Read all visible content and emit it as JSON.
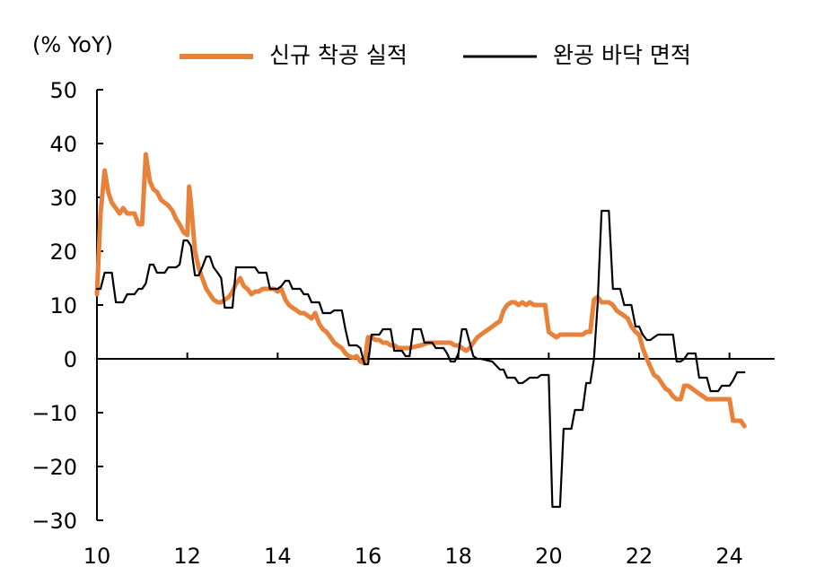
{
  "chart_data": {
    "type": "line",
    "unit_label": "(% YoY)",
    "xlim": [
      2010,
      2025
    ],
    "ylim": [
      -30,
      50
    ],
    "y_ticks": [
      50,
      40,
      30,
      20,
      10,
      0,
      -10,
      -20,
      -30
    ],
    "x_ticks": [
      10,
      12,
      14,
      16,
      18,
      20,
      22,
      24
    ],
    "grid": false,
    "legend_position": "top",
    "colors": {
      "orange": "#E8823A",
      "black": "#000000"
    },
    "series": [
      {
        "name": "신규 착공 실적",
        "color": "#E8823A",
        "points": [
          [
            2010.0,
            12
          ],
          [
            2010.08,
            27
          ],
          [
            2010.17,
            35
          ],
          [
            2010.25,
            31
          ],
          [
            2010.33,
            29
          ],
          [
            2010.42,
            28
          ],
          [
            2010.5,
            27
          ],
          [
            2010.58,
            28
          ],
          [
            2010.67,
            27
          ],
          [
            2010.75,
            27
          ],
          [
            2010.83,
            27
          ],
          [
            2010.92,
            25
          ],
          [
            2011.0,
            25
          ],
          [
            2011.08,
            38
          ],
          [
            2011.17,
            33
          ],
          [
            2011.25,
            31.5
          ],
          [
            2011.33,
            31
          ],
          [
            2011.42,
            29.5
          ],
          [
            2011.5,
            29
          ],
          [
            2011.58,
            28.5
          ],
          [
            2011.67,
            27.5
          ],
          [
            2011.75,
            26
          ],
          [
            2011.83,
            25
          ],
          [
            2011.92,
            23.5
          ],
          [
            2012.0,
            23
          ],
          [
            2012.04,
            32
          ],
          [
            2012.08,
            29
          ],
          [
            2012.17,
            20
          ],
          [
            2012.25,
            17
          ],
          [
            2012.33,
            15
          ],
          [
            2012.42,
            13
          ],
          [
            2012.5,
            12
          ],
          [
            2012.58,
            11
          ],
          [
            2012.67,
            10.5
          ],
          [
            2012.75,
            10.5
          ],
          [
            2012.83,
            11
          ],
          [
            2012.92,
            11.5
          ],
          [
            2013.0,
            12.5
          ],
          [
            2013.08,
            14
          ],
          [
            2013.17,
            15
          ],
          [
            2013.25,
            13.5
          ],
          [
            2013.33,
            13
          ],
          [
            2013.42,
            12
          ],
          [
            2013.5,
            12.5
          ],
          [
            2013.58,
            12.5
          ],
          [
            2013.67,
            13
          ],
          [
            2013.75,
            13
          ],
          [
            2013.83,
            13
          ],
          [
            2013.92,
            13
          ],
          [
            2014.0,
            12.5
          ],
          [
            2014.08,
            13
          ],
          [
            2014.17,
            11
          ],
          [
            2014.25,
            10
          ],
          [
            2014.33,
            9.5
          ],
          [
            2014.42,
            9
          ],
          [
            2014.5,
            8.5
          ],
          [
            2014.58,
            8.5
          ],
          [
            2014.67,
            8
          ],
          [
            2014.75,
            7.5
          ],
          [
            2014.83,
            8.5
          ],
          [
            2014.92,
            6.5
          ],
          [
            2015.0,
            5.5
          ],
          [
            2015.08,
            5
          ],
          [
            2015.17,
            4
          ],
          [
            2015.25,
            3
          ],
          [
            2015.33,
            2.5
          ],
          [
            2015.42,
            2
          ],
          [
            2015.5,
            1
          ],
          [
            2015.58,
            0.5
          ],
          [
            2015.67,
            0.2
          ],
          [
            2015.75,
            0.5
          ],
          [
            2015.83,
            -0.5
          ],
          [
            2015.92,
            -0.8
          ],
          [
            2016.0,
            4
          ],
          [
            2016.08,
            4
          ],
          [
            2016.17,
            3.5
          ],
          [
            2016.25,
            3.5
          ],
          [
            2016.33,
            3
          ],
          [
            2016.42,
            3
          ],
          [
            2016.5,
            2.5
          ],
          [
            2016.58,
            2.5
          ],
          [
            2016.67,
            2
          ],
          [
            2016.75,
            2
          ],
          [
            2016.83,
            2
          ],
          [
            2016.92,
            2
          ],
          [
            2017.0,
            2.2
          ],
          [
            2017.17,
            2.5
          ],
          [
            2017.33,
            3
          ],
          [
            2017.5,
            3
          ],
          [
            2017.67,
            3
          ],
          [
            2017.83,
            3
          ],
          [
            2017.92,
            2.5
          ],
          [
            2018.0,
            2.5
          ],
          [
            2018.08,
            2
          ],
          [
            2018.17,
            1.5
          ],
          [
            2018.25,
            2
          ],
          [
            2018.33,
            3
          ],
          [
            2018.42,
            4
          ],
          [
            2018.5,
            4.5
          ],
          [
            2018.58,
            5
          ],
          [
            2018.67,
            5.5
          ],
          [
            2018.75,
            6
          ],
          [
            2018.83,
            6.5
          ],
          [
            2018.92,
            7
          ],
          [
            2019.0,
            9
          ],
          [
            2019.08,
            10
          ],
          [
            2019.17,
            10.5
          ],
          [
            2019.25,
            10.5
          ],
          [
            2019.33,
            10
          ],
          [
            2019.42,
            10.5
          ],
          [
            2019.5,
            10
          ],
          [
            2019.58,
            10.5
          ],
          [
            2019.67,
            10
          ],
          [
            2019.75,
            10
          ],
          [
            2019.83,
            10
          ],
          [
            2019.92,
            10
          ],
          [
            2020.0,
            5
          ],
          [
            2020.08,
            4.5
          ],
          [
            2020.17,
            4
          ],
          [
            2020.25,
            4.5
          ],
          [
            2020.33,
            4.5
          ],
          [
            2020.42,
            4.5
          ],
          [
            2020.5,
            4.5
          ],
          [
            2020.58,
            4.5
          ],
          [
            2020.67,
            4.5
          ],
          [
            2020.75,
            4.5
          ],
          [
            2020.83,
            5
          ],
          [
            2020.92,
            5
          ],
          [
            2021.0,
            11
          ],
          [
            2021.08,
            11.5
          ],
          [
            2021.17,
            10.5
          ],
          [
            2021.25,
            10.5
          ],
          [
            2021.33,
            10.5
          ],
          [
            2021.42,
            10
          ],
          [
            2021.5,
            9
          ],
          [
            2021.58,
            8.5
          ],
          [
            2021.67,
            8
          ],
          [
            2021.75,
            7.5
          ],
          [
            2021.83,
            6
          ],
          [
            2021.92,
            5
          ],
          [
            2022.0,
            4.5
          ],
          [
            2022.08,
            2
          ],
          [
            2022.17,
            0
          ],
          [
            2022.25,
            -1.5
          ],
          [
            2022.33,
            -3
          ],
          [
            2022.42,
            -3.5
          ],
          [
            2022.5,
            -4.5
          ],
          [
            2022.58,
            -5.5
          ],
          [
            2022.67,
            -6
          ],
          [
            2022.75,
            -7
          ],
          [
            2022.83,
            -7.5
          ],
          [
            2022.92,
            -7.5
          ],
          [
            2023.0,
            -5
          ],
          [
            2023.08,
            -5
          ],
          [
            2023.17,
            -5.5
          ],
          [
            2023.25,
            -6
          ],
          [
            2023.33,
            -6.5
          ],
          [
            2023.42,
            -7
          ],
          [
            2023.5,
            -7.5
          ],
          [
            2023.58,
            -7.5
          ],
          [
            2023.67,
            -7.5
          ],
          [
            2023.75,
            -7.5
          ],
          [
            2023.83,
            -7.5
          ],
          [
            2023.92,
            -7.5
          ],
          [
            2024.0,
            -7.5
          ],
          [
            2024.08,
            -11.5
          ],
          [
            2024.17,
            -11.5
          ],
          [
            2024.25,
            -11.5
          ],
          [
            2024.33,
            -12.5
          ]
        ]
      },
      {
        "name": "완공 바닥 면적",
        "color": "#000000",
        "points": [
          [
            2010.0,
            13
          ],
          [
            2010.08,
            13
          ],
          [
            2010.17,
            16
          ],
          [
            2010.33,
            16
          ],
          [
            2010.42,
            10.5
          ],
          [
            2010.58,
            10.5
          ],
          [
            2010.67,
            12
          ],
          [
            2010.83,
            12
          ],
          [
            2010.92,
            13
          ],
          [
            2011.0,
            13
          ],
          [
            2011.08,
            14
          ],
          [
            2011.17,
            17.5
          ],
          [
            2011.25,
            17.5
          ],
          [
            2011.33,
            16
          ],
          [
            2011.5,
            16
          ],
          [
            2011.58,
            17
          ],
          [
            2011.75,
            17
          ],
          [
            2011.83,
            17.5
          ],
          [
            2011.92,
            22
          ],
          [
            2012.0,
            22
          ],
          [
            2012.08,
            21
          ],
          [
            2012.17,
            15.5
          ],
          [
            2012.25,
            15.5
          ],
          [
            2012.33,
            17
          ],
          [
            2012.42,
            19
          ],
          [
            2012.5,
            19
          ],
          [
            2012.58,
            17
          ],
          [
            2012.67,
            16
          ],
          [
            2012.75,
            15
          ],
          [
            2012.83,
            9.5
          ],
          [
            2013.0,
            9.5
          ],
          [
            2013.08,
            17
          ],
          [
            2013.5,
            17
          ],
          [
            2013.58,
            16
          ],
          [
            2013.75,
            16
          ],
          [
            2013.83,
            13
          ],
          [
            2014.0,
            13
          ],
          [
            2014.08,
            13.5
          ],
          [
            2014.17,
            14.5
          ],
          [
            2014.25,
            14.5
          ],
          [
            2014.33,
            13
          ],
          [
            2014.5,
            13
          ],
          [
            2014.58,
            12
          ],
          [
            2014.67,
            12
          ],
          [
            2014.75,
            10.5
          ],
          [
            2014.92,
            10.5
          ],
          [
            2015.0,
            8.5
          ],
          [
            2015.17,
            8.5
          ],
          [
            2015.25,
            9
          ],
          [
            2015.42,
            9
          ],
          [
            2015.5,
            5.5
          ],
          [
            2015.58,
            2.5
          ],
          [
            2015.75,
            2.5
          ],
          [
            2015.83,
            2
          ],
          [
            2015.92,
            -1
          ],
          [
            2016.0,
            -1
          ],
          [
            2016.08,
            4.5
          ],
          [
            2016.17,
            4.5
          ],
          [
            2016.25,
            4.5
          ],
          [
            2016.33,
            5.5
          ],
          [
            2016.5,
            5.5
          ],
          [
            2016.58,
            1.5
          ],
          [
            2016.75,
            1.5
          ],
          [
            2016.83,
            0.5
          ],
          [
            2016.92,
            0.5
          ],
          [
            2017.0,
            5.5
          ],
          [
            2017.17,
            5.5
          ],
          [
            2017.25,
            3
          ],
          [
            2017.42,
            3
          ],
          [
            2017.5,
            2
          ],
          [
            2017.58,
            2
          ],
          [
            2017.67,
            2
          ],
          [
            2017.75,
            1
          ],
          [
            2017.83,
            -0.5
          ],
          [
            2017.92,
            -0.5
          ],
          [
            2018.0,
            1
          ],
          [
            2018.08,
            5.5
          ],
          [
            2018.17,
            5.5
          ],
          [
            2018.25,
            3
          ],
          [
            2018.33,
            0.5
          ],
          [
            2018.42,
            0
          ],
          [
            2018.5,
            0
          ],
          [
            2018.75,
            -0.5
          ],
          [
            2018.92,
            -2
          ],
          [
            2019.0,
            -2
          ],
          [
            2019.08,
            -3.5
          ],
          [
            2019.25,
            -3.5
          ],
          [
            2019.33,
            -4.5
          ],
          [
            2019.42,
            -4.5
          ],
          [
            2019.5,
            -4
          ],
          [
            2019.58,
            -3.5
          ],
          [
            2019.75,
            -3.5
          ],
          [
            2019.83,
            -3
          ],
          [
            2020.0,
            -3
          ],
          [
            2020.08,
            -27.5
          ],
          [
            2020.25,
            -27.5
          ],
          [
            2020.33,
            -13
          ],
          [
            2020.5,
            -13
          ],
          [
            2020.58,
            -9.5
          ],
          [
            2020.75,
            -9.5
          ],
          [
            2020.83,
            -4.5
          ],
          [
            2020.92,
            -4.5
          ],
          [
            2021.0,
            0
          ],
          [
            2021.08,
            10
          ],
          [
            2021.17,
            27.5
          ],
          [
            2021.33,
            27.5
          ],
          [
            2021.42,
            13
          ],
          [
            2021.58,
            13
          ],
          [
            2021.67,
            10
          ],
          [
            2021.83,
            10
          ],
          [
            2021.92,
            6
          ],
          [
            2022.0,
            6
          ],
          [
            2022.08,
            4.5
          ],
          [
            2022.17,
            3.5
          ],
          [
            2022.25,
            3.5
          ],
          [
            2022.33,
            4
          ],
          [
            2022.42,
            4.5
          ],
          [
            2022.75,
            4.5
          ],
          [
            2022.83,
            -0.5
          ],
          [
            2022.92,
            -0.5
          ],
          [
            2023.0,
            0
          ],
          [
            2023.08,
            1
          ],
          [
            2023.25,
            1
          ],
          [
            2023.33,
            -3.5
          ],
          [
            2023.42,
            -3.5
          ],
          [
            2023.5,
            -3.5
          ],
          [
            2023.58,
            -6
          ],
          [
            2023.75,
            -6
          ],
          [
            2023.83,
            -5
          ],
          [
            2024.0,
            -5
          ],
          [
            2024.08,
            -4
          ],
          [
            2024.17,
            -2.5
          ],
          [
            2024.33,
            -2.5
          ]
        ]
      }
    ]
  }
}
